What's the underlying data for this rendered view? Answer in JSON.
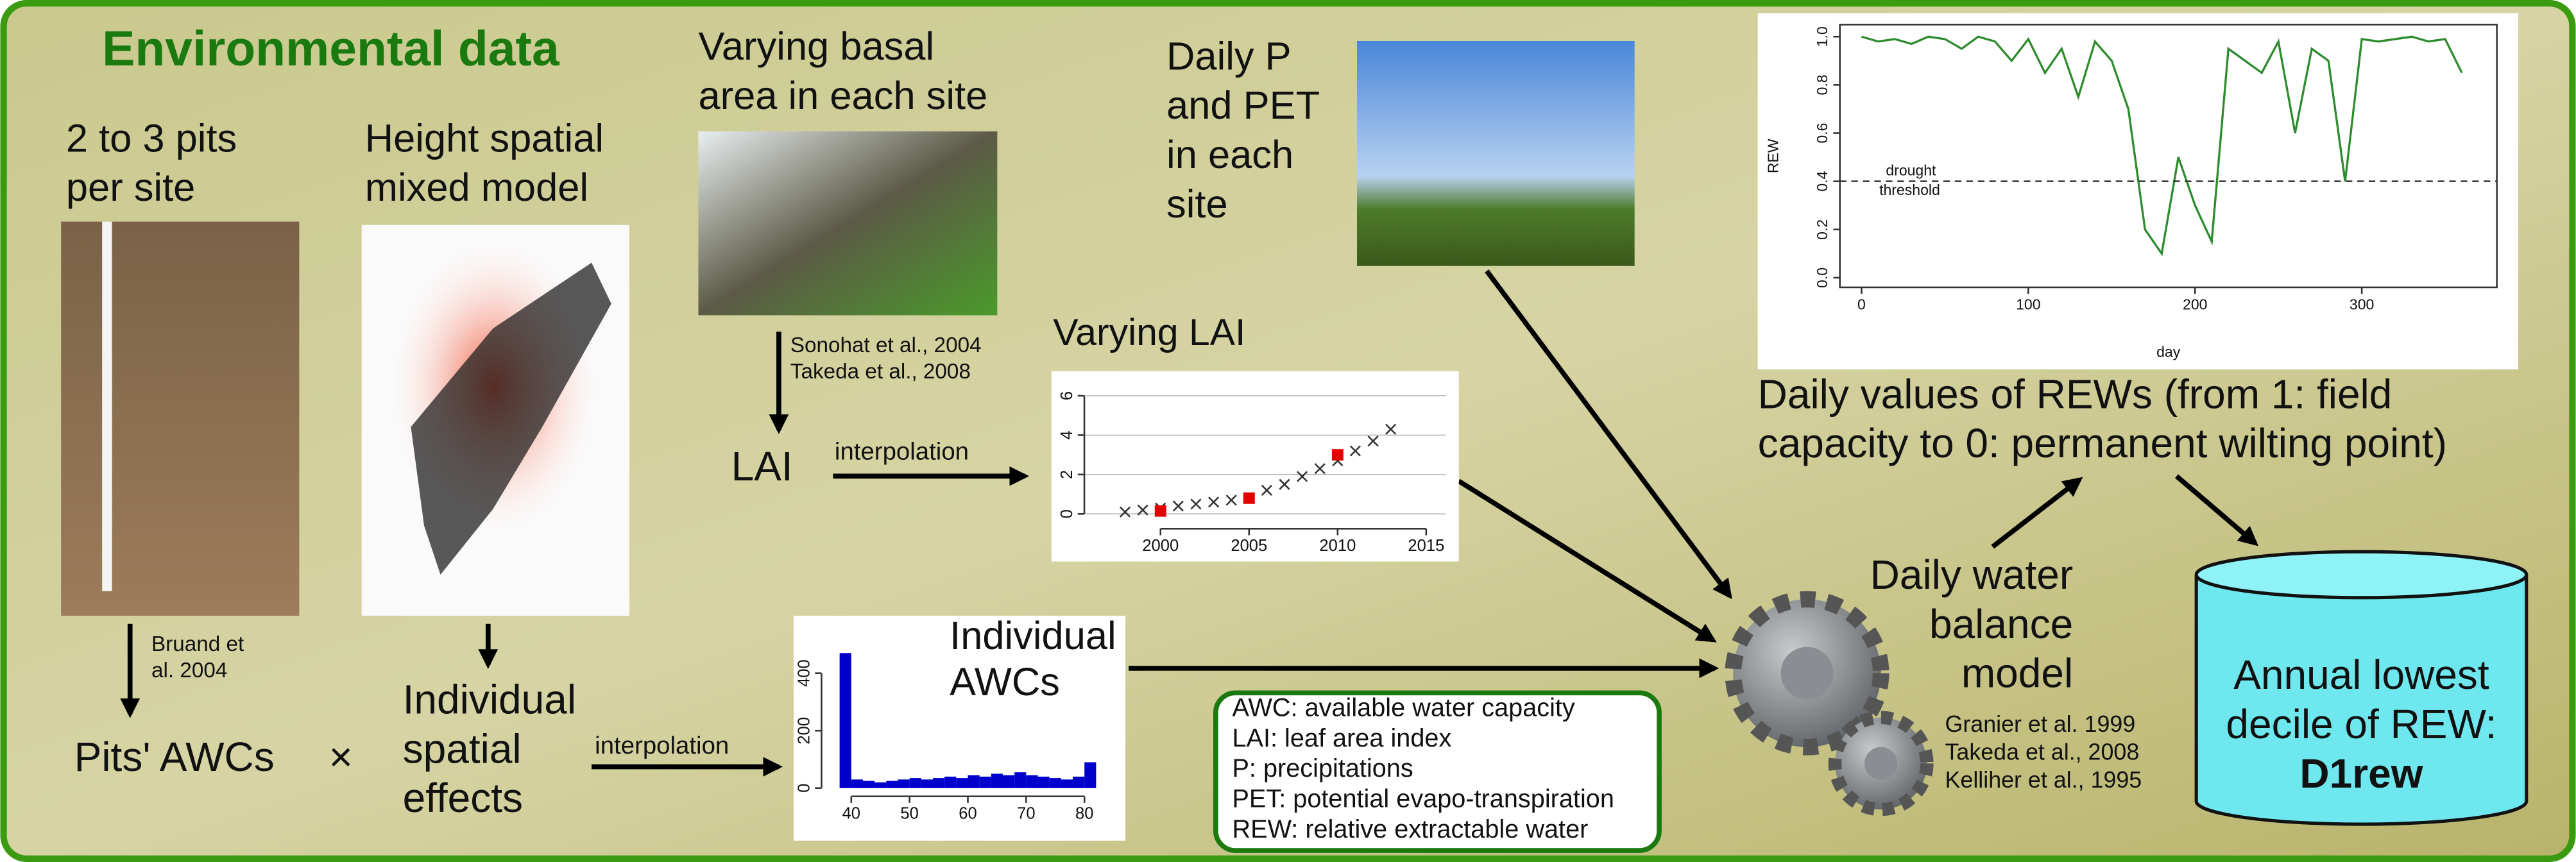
{
  "title": "Environmental data",
  "pits": [
    "2 to 3 pits",
    "per site"
  ],
  "height_model": [
    "Height spatial",
    "mixed model"
  ],
  "basal_area": [
    "Varying basal",
    "area in each site"
  ],
  "daily_p_pet": [
    "Daily P",
    "and PET",
    "in each",
    "site"
  ],
  "rew_caption": [
    "Daily values of REWs (from 1: field",
    "capacity to 0: permanent wilting point)"
  ],
  "bruand_ref": [
    "Bruand et",
    "al. 2004"
  ],
  "pits_awcs": "Pits' AWCs",
  "times": "×",
  "individual_spatial": [
    "Individual",
    "spatial",
    "effects"
  ],
  "interpolation_awc": "interpolation",
  "individual_awcs": [
    "Individual",
    "AWCs"
  ],
  "lai_refs": [
    "Sonohat et al., 2004",
    "Takeda et al., 2008"
  ],
  "lai": "LAI",
  "interpolation_lai": "interpolation",
  "varying_lai": "Varying LAI",
  "water_balance": [
    "Daily water",
    "balance",
    "model"
  ],
  "model_refs": [
    "Granier et al. 1999",
    "Takeda et al., 2008",
    "Kelliher et al., 1995"
  ],
  "glossary": [
    "AWC: available water capacity",
    "LAI: leaf area index",
    "P: precipitations",
    "PET: potential evapo-transpiration",
    "REW: relative extractable water"
  ],
  "output": [
    "Annual lowest",
    "decile of REW:",
    "D1rew"
  ],
  "rew_chart": {
    "type": "line",
    "ylabel": "REW",
    "xlabel": "day",
    "annotation": [
      "drought",
      "threshold"
    ],
    "threshold": 0.4,
    "color": "#2e8b2e",
    "x": [
      0,
      10,
      20,
      30,
      40,
      50,
      60,
      70,
      80,
      90,
      100,
      110,
      120,
      130,
      140,
      150,
      160,
      170,
      180,
      190,
      200,
      210,
      220,
      230,
      240,
      250,
      260,
      270,
      280,
      290,
      300,
      310,
      320,
      330,
      340,
      350,
      360
    ],
    "values": [
      1.0,
      0.98,
      0.99,
      0.97,
      1.0,
      0.99,
      0.95,
      1.0,
      0.98,
      0.9,
      0.99,
      0.85,
      0.95,
      0.75,
      0.98,
      0.9,
      0.7,
      0.2,
      0.1,
      0.5,
      0.3,
      0.15,
      0.95,
      0.9,
      0.85,
      0.98,
      0.6,
      0.95,
      0.9,
      0.4,
      0.99,
      0.98,
      0.99,
      1.0,
      0.98,
      0.99,
      0.85
    ],
    "xlim": [
      -13,
      381
    ],
    "ylim": [
      -0.04,
      1.05
    ],
    "xticks": [
      0,
      100,
      200,
      300
    ],
    "yticks": [
      {
        "value": 0,
        "label": "0.0"
      },
      {
        "value": 0.2,
        "label": "0.2"
      },
      {
        "value": 0.4,
        "label": "0.4"
      },
      {
        "value": 0.6,
        "label": "0.6"
      },
      {
        "value": 0.8,
        "label": "0.8"
      },
      {
        "value": 1,
        "label": "1.0"
      }
    ]
  },
  "lai_chart": {
    "type": "scatter",
    "grid": true,
    "series": [
      {
        "marker": "cross",
        "color": "#333333",
        "x": [
          1998,
          1999,
          2000,
          2001,
          2002,
          2003,
          2004,
          2005,
          2006,
          2007,
          2008,
          2009,
          2010,
          2011,
          2012,
          2013
        ],
        "values": [
          0.1,
          0.2,
          0.3,
          0.4,
          0.5,
          0.6,
          0.7,
          0.8,
          1.2,
          1.5,
          1.9,
          2.3,
          2.7,
          3.2,
          3.7,
          4.3
        ]
      },
      {
        "marker": "square",
        "color": "#e00000",
        "x": [
          2000,
          2005,
          2010
        ],
        "values": [
          0.15,
          0.8,
          3.0
        ]
      }
    ],
    "xlim": [
      1995.7,
      2016.1
    ],
    "ylim": [
      -0.75,
      6.67
    ],
    "xticks": [
      2000,
      2005,
      2010,
      2015
    ],
    "yticks": [
      0,
      2,
      4,
      6
    ]
  },
  "awc_histogram": {
    "type": "histogram",
    "color": "#0000cc",
    "bins": [
      38,
      40,
      42,
      44,
      46,
      48,
      50,
      52,
      54,
      56,
      58,
      60,
      62,
      64,
      66,
      68,
      70,
      72,
      74,
      76,
      78,
      80,
      82
    ],
    "values": [
      470,
      30,
      25,
      20,
      25,
      30,
      35,
      30,
      35,
      40,
      35,
      45,
      40,
      50,
      45,
      55,
      45,
      40,
      35,
      30,
      40,
      90
    ],
    "xlim": [
      34.9,
      82.8
    ],
    "ylim": [
      -28.6,
      543
    ],
    "xticks": [
      40,
      50,
      60,
      70,
      80
    ],
    "yticks": [
      0,
      200,
      400
    ]
  }
}
